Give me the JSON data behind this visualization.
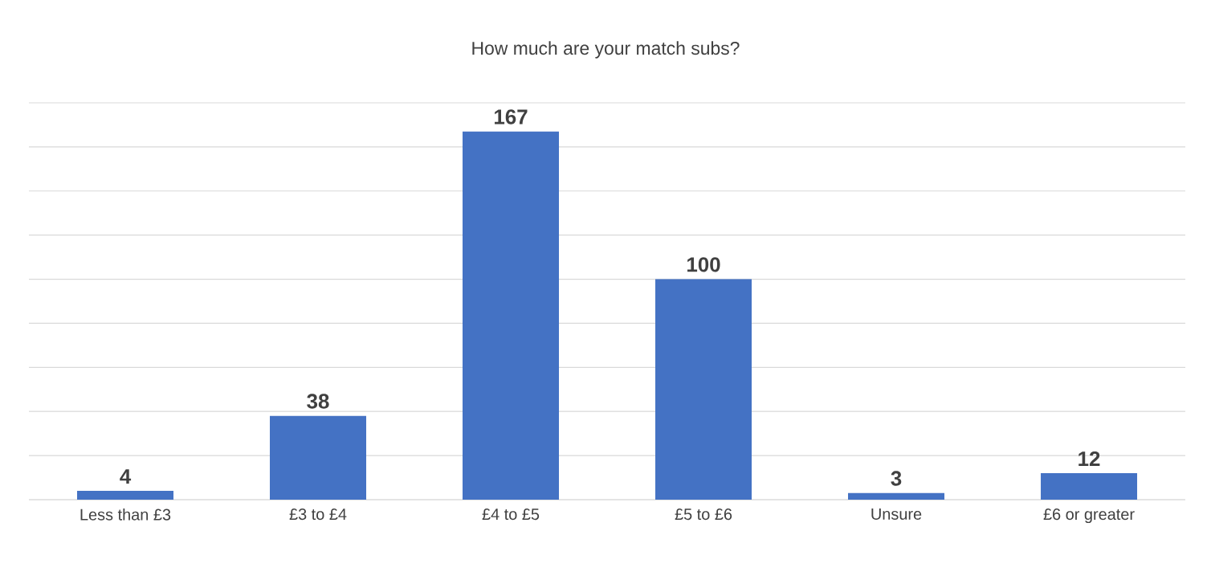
{
  "chart_data": {
    "type": "bar",
    "title": "How much are your match subs?",
    "categories": [
      "Less than £3",
      "£3 to £4",
      "£4 to £5",
      "£5 to £6",
      "Unsure",
      "£6 or greater"
    ],
    "values": [
      4,
      38,
      167,
      100,
      3,
      12
    ],
    "color": "#4472c4",
    "ylim": [
      0,
      180
    ],
    "yticks": [
      {
        "value": 0,
        "label": null
      },
      {
        "value": 20,
        "label": null
      },
      {
        "value": 40,
        "label": null
      },
      {
        "value": 60,
        "label": null
      },
      {
        "value": 80,
        "label": null
      },
      {
        "value": 100,
        "label": null
      },
      {
        "value": 120,
        "label": null
      },
      {
        "value": 140,
        "label": null
      },
      {
        "value": 160,
        "label": null
      },
      {
        "value": 180,
        "label": null
      }
    ],
    "grid": "y",
    "tick_labels": "x",
    "data_labels": true
  }
}
